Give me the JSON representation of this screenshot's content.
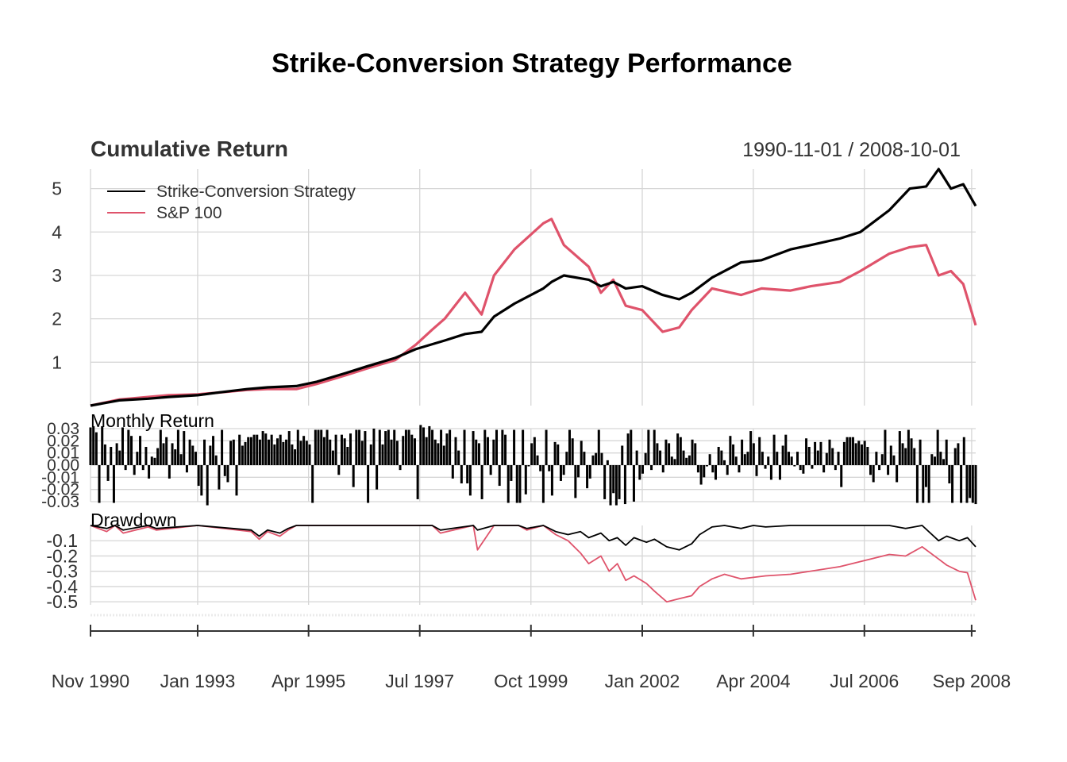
{
  "title": "Strike-Conversion Strategy Performance",
  "colors": {
    "strategy": "#000000",
    "benchmark": "#DF536B",
    "grid": "#D6D6D6",
    "text": "#333333"
  },
  "chart_data": [
    {
      "type": "line",
      "title": "Cumulative Return",
      "date_range_label": "1990-11-01 / 2008-10-01",
      "ylim": [
        0,
        5.45
      ],
      "yticks": [
        "1",
        "2",
        "3",
        "4",
        "5"
      ],
      "legend": {
        "position": "top-left",
        "entries": [
          "Strike-Conversion Strategy",
          "S&P 100"
        ]
      },
      "grid": true,
      "series": [
        {
          "name": "Strike-Conversion Strategy",
          "x": [
            "1990-11-01",
            "1991-06-01",
            "1992-01-01",
            "1992-06-01",
            "1993-01-01",
            "1993-06-01",
            "1994-01-01",
            "1994-06-01",
            "1995-01-01",
            "1995-06-01",
            "1996-01-01",
            "1996-06-01",
            "1997-01-01",
            "1997-06-01",
            "1998-01-01",
            "1998-06-01",
            "1998-10-01",
            "1999-01-01",
            "1999-06-01",
            "2000-01-01",
            "2000-03-01",
            "2000-06-01",
            "2000-12-01",
            "2001-03-01",
            "2001-06-01",
            "2001-09-01",
            "2002-01-01",
            "2002-06-01",
            "2002-10-01",
            "2003-01-01",
            "2003-06-01",
            "2004-01-01",
            "2004-06-01",
            "2005-01-01",
            "2005-06-01",
            "2006-01-01",
            "2006-06-01",
            "2007-01-01",
            "2007-06-01",
            "2007-10-01",
            "2008-01-01",
            "2008-04-01",
            "2008-07-01",
            "2008-10-01"
          ],
          "y": [
            0.0,
            0.12,
            0.16,
            0.2,
            0.24,
            0.3,
            0.38,
            0.42,
            0.45,
            0.55,
            0.75,
            0.9,
            1.1,
            1.3,
            1.5,
            1.65,
            1.7,
            2.05,
            2.35,
            2.7,
            2.85,
            3.0,
            2.9,
            2.75,
            2.85,
            2.7,
            2.75,
            2.55,
            2.45,
            2.6,
            2.95,
            3.3,
            3.35,
            3.6,
            3.7,
            3.85,
            4.0,
            4.5,
            5.0,
            5.05,
            5.45,
            5.0,
            5.1,
            4.6
          ]
        },
        {
          "name": "S&P 100",
          "x": [
            "1990-11-01",
            "1991-06-01",
            "1992-01-01",
            "1992-06-01",
            "1993-01-01",
            "1993-06-01",
            "1994-01-01",
            "1994-06-01",
            "1995-01-01",
            "1995-06-01",
            "1996-01-01",
            "1996-06-01",
            "1997-01-01",
            "1997-06-01",
            "1997-10-01",
            "1998-01-01",
            "1998-06-01",
            "1998-10-01",
            "1999-01-01",
            "1999-06-01",
            "2000-01-01",
            "2000-03-01",
            "2000-06-01",
            "2000-12-01",
            "2001-03-01",
            "2001-06-01",
            "2001-09-01",
            "2002-01-01",
            "2002-06-01",
            "2002-10-01",
            "2003-01-01",
            "2003-06-01",
            "2004-01-01",
            "2004-06-01",
            "2005-01-01",
            "2005-06-01",
            "2006-01-01",
            "2006-06-01",
            "2007-01-01",
            "2007-06-01",
            "2007-10-01",
            "2008-01-01",
            "2008-04-01",
            "2008-07-01",
            "2008-10-01"
          ],
          "y": [
            0.0,
            0.14,
            0.2,
            0.24,
            0.26,
            0.3,
            0.36,
            0.38,
            0.38,
            0.5,
            0.7,
            0.85,
            1.05,
            1.4,
            1.75,
            2.0,
            2.6,
            2.1,
            3.0,
            3.6,
            4.2,
            4.3,
            3.7,
            3.2,
            2.6,
            2.9,
            2.3,
            2.2,
            1.7,
            1.8,
            2.2,
            2.7,
            2.55,
            2.7,
            2.65,
            2.75,
            2.85,
            3.1,
            3.5,
            3.65,
            3.7,
            3.0,
            3.1,
            2.8,
            1.85
          ]
        }
      ]
    },
    {
      "type": "bar",
      "title": "Monthly Return",
      "ylim": [
        -0.03,
        0.03
      ],
      "yticks": [
        "0.03",
        "0.02",
        "0.01",
        "0.00",
        "-0.01",
        "-0.02",
        "-0.03"
      ],
      "series": [
        {
          "name": "Strike-Conversion Strategy",
          "values": [
            0.031,
            0.032,
            0.027,
            -0.031,
            0.032,
            0.017,
            -0.013,
            0.015,
            -0.031,
            0.018,
            0.012,
            0.031,
            -0.004,
            0.029,
            0.024,
            -0.008,
            0.011,
            0.024,
            -0.004,
            0.015,
            -0.011,
            0.007,
            0.006,
            0.014,
            0.029,
            0.018,
            0.023,
            -0.011,
            0.018,
            0.013,
            0.029,
            0.009,
            0.028,
            -0.006,
            0.021,
            0.016,
            0.011,
            -0.017,
            -0.025,
            0.021,
            -0.033,
            0.016,
            0.024,
            0.008,
            -0.02,
            0.029,
            -0.009,
            -0.014,
            0.02,
            0.021,
            -0.025,
            0.025,
            0.016,
            0.019,
            0.023,
            0.023,
            0.025,
            0.025,
            0.021,
            0.028,
            0.026,
            0.021,
            0.025,
            0.017,
            0.022,
            0.025,
            0.019,
            0.021,
            0.028,
            0.017,
            0.013,
            0.029,
            0.02,
            0.024,
            0.02,
            0.017,
            -0.031,
            0.029,
            0.029,
            0.029,
            0.023,
            0.029,
            0.021,
            0.012,
            0.025,
            -0.008,
            0.025,
            0.022,
            0.015,
            0.026,
            -0.018,
            0.029,
            0.029,
            0.02,
            0.028,
            -0.031,
            0.017,
            0.03,
            -0.02,
            0.029,
            0.017,
            0.028,
            0.029,
            0.021,
            0.029,
            0.02,
            -0.004,
            0.024,
            0.029,
            0.029,
            0.025,
            0.022,
            -0.028,
            0.033,
            0.031,
            0.023,
            0.032,
            0.029,
            0.021,
            0.018,
            0.029,
            0.016,
            0.026,
            0.029,
            -0.011,
            0.023,
            0.012,
            -0.015,
            0.029,
            -0.015,
            -0.025,
            0.028,
            0.021,
            0.018,
            -0.028,
            0.029,
            0.023,
            -0.008,
            0.021,
            0.029,
            -0.017,
            0.029,
            0.025,
            -0.031,
            -0.013,
            0.029,
            -0.031,
            -0.031,
            0.029,
            -0.024,
            -0.001,
            0.018,
            0.023,
            0.008,
            -0.005,
            -0.031,
            0.029,
            -0.005,
            -0.025,
            0.019,
            0.017,
            -0.013,
            -0.008,
            0.011,
            0.029,
            0.022,
            -0.027,
            -0.01,
            0.02,
            0.011,
            -0.019,
            -0.011,
            0.008,
            0.01,
            0.029,
            0.01,
            -0.028,
            0.004,
            -0.033,
            -0.023,
            -0.033,
            -0.028,
            0.016,
            -0.032,
            0.026,
            0.029,
            -0.03,
            0.012,
            -0.012,
            -0.007,
            0.01,
            0.029,
            -0.004,
            0.029,
            0.018,
            0.012,
            -0.006,
            0.021,
            0.018,
            0.007,
            0.005,
            0.026,
            0.023,
            0.012,
            0.006,
            0.008,
            0.021,
            0.018,
            -0.006,
            -0.016,
            -0.01,
            -0.001,
            0.009,
            -0.006,
            -0.012,
            0.015,
            0.012,
            0.004,
            -0.008,
            0.024,
            0.017,
            0.007,
            -0.006,
            0.021,
            0.009,
            0.011,
            0.028,
            0.018,
            -0.009,
            0.023,
            0.011,
            -0.003,
            0.007,
            -0.012,
            0.025,
            0.011,
            -0.012,
            0.016,
            0.025,
            0.011,
            0.007,
            -0.001,
            0.011,
            -0.004,
            -0.007,
            0.022,
            0.015,
            -0.003,
            0.019,
            0.012,
            0.019,
            -0.006,
            0.01,
            0.021,
            0.014,
            -0.004,
            0.011,
            -0.018,
            0.019,
            0.023,
            0.023,
            0.023,
            0.018,
            0.02,
            0.017,
            0.02,
            0.015,
            -0.008,
            -0.014,
            0.011,
            -0.004,
            0.009,
            0.029,
            -0.008,
            0.016,
            0.008,
            -0.014,
            0.028,
            0.018,
            0.014,
            0.029,
            0.022,
            0.014,
            -0.031,
            0.021,
            -0.031,
            -0.018,
            -0.031,
            0.009,
            0.007,
            0.029,
            0.011,
            0.005,
            0.021,
            -0.015,
            -0.031,
            0.014,
            0.018,
            -0.031,
            0.023,
            -0.031,
            -0.027,
            -0.031,
            -0.032
          ]
        }
      ]
    },
    {
      "type": "line",
      "title": "Drawdown",
      "ylim": [
        -0.52,
        0.0
      ],
      "yticks": [
        "-0.1",
        "-0.2",
        "-0.3",
        "-0.4",
        "-0.5"
      ],
      "series": [
        {
          "name": "Strike-Conversion Strategy",
          "x": [
            "1990-11-01",
            "1991-03-01",
            "1991-05-01",
            "1991-07-01",
            "1992-01-01",
            "1992-03-01",
            "1993-01-01",
            "1994-02-01",
            "1994-04-01",
            "1994-06-01",
            "1994-09-01",
            "1994-11-01",
            "1995-01-01",
            "1997-10-01",
            "1997-12-01",
            "1998-08-01",
            "1998-09-01",
            "1999-01-01",
            "1999-07-01",
            "1999-09-01",
            "2000-01-01",
            "2000-04-01",
            "2000-07-01",
            "2000-10-01",
            "2000-12-01",
            "2001-03-01",
            "2001-05-01",
            "2001-07-01",
            "2001-09-01",
            "2001-11-01",
            "2002-02-01",
            "2002-04-01",
            "2002-07-01",
            "2002-10-01",
            "2003-01-01",
            "2003-03-01",
            "2003-06-01",
            "2003-09-01",
            "2004-01-01",
            "2004-04-01",
            "2004-07-01",
            "2005-01-01",
            "2006-01-01",
            "2007-01-01",
            "2007-05-01",
            "2007-09-01",
            "2008-01-01",
            "2008-03-01",
            "2008-06-01",
            "2008-08-01",
            "2008-10-01"
          ],
          "y": [
            0.0,
            -0.02,
            0.0,
            -0.03,
            0.0,
            -0.02,
            0.0,
            -0.03,
            -0.07,
            -0.03,
            -0.05,
            -0.02,
            0.0,
            0.0,
            -0.03,
            0.0,
            -0.03,
            0.0,
            0.0,
            -0.02,
            0.0,
            -0.04,
            -0.06,
            -0.04,
            -0.08,
            -0.05,
            -0.1,
            -0.08,
            -0.13,
            -0.08,
            -0.11,
            -0.09,
            -0.14,
            -0.16,
            -0.12,
            -0.06,
            -0.01,
            0.0,
            -0.02,
            0.0,
            -0.01,
            0.0,
            0.0,
            0.0,
            -0.02,
            0.0,
            -0.1,
            -0.07,
            -0.1,
            -0.08,
            -0.14
          ]
        },
        {
          "name": "S&P 100",
          "x": [
            "1990-11-01",
            "1991-03-01",
            "1991-05-01",
            "1991-07-01",
            "1992-01-01",
            "1992-03-01",
            "1993-01-01",
            "1994-02-01",
            "1994-04-01",
            "1994-06-01",
            "1994-09-01",
            "1994-11-01",
            "1995-01-01",
            "1997-10-01",
            "1997-12-01",
            "1998-08-01",
            "1998-09-01",
            "1999-01-01",
            "1999-07-01",
            "1999-09-01",
            "2000-01-01",
            "2000-04-01",
            "2000-07-01",
            "2000-10-01",
            "2000-12-01",
            "2001-03-01",
            "2001-05-01",
            "2001-07-01",
            "2001-09-01",
            "2001-11-01",
            "2002-02-01",
            "2002-04-01",
            "2002-07-01",
            "2002-10-01",
            "2003-01-01",
            "2003-03-01",
            "2003-06-01",
            "2003-09-01",
            "2004-01-01",
            "2004-04-01",
            "2004-07-01",
            "2005-01-01",
            "2006-01-01",
            "2007-01-01",
            "2007-05-01",
            "2007-09-01",
            "2008-01-01",
            "2008-03-01",
            "2008-06-01",
            "2008-08-01",
            "2008-10-01"
          ],
          "y": [
            0.0,
            -0.04,
            0.0,
            -0.05,
            -0.01,
            -0.03,
            0.0,
            -0.04,
            -0.09,
            -0.04,
            -0.07,
            -0.03,
            0.0,
            0.0,
            -0.05,
            0.0,
            -0.16,
            0.0,
            0.0,
            -0.03,
            0.0,
            -0.06,
            -0.1,
            -0.18,
            -0.25,
            -0.2,
            -0.3,
            -0.25,
            -0.36,
            -0.33,
            -0.38,
            -0.43,
            -0.5,
            -0.48,
            -0.46,
            -0.4,
            -0.35,
            -0.32,
            -0.35,
            -0.34,
            -0.33,
            -0.32,
            -0.27,
            -0.19,
            -0.2,
            -0.14,
            -0.22,
            -0.26,
            -0.3,
            -0.31,
            -0.49
          ]
        }
      ]
    }
  ],
  "x_axis": {
    "start": "1990-11-01",
    "end": "2008-10-01",
    "tick_labels": [
      "Nov 1990",
      "Jan 1993",
      "Apr 1995",
      "Jul 1997",
      "Oct 1999",
      "Jan 2002",
      "Apr 2004",
      "Jul 2006",
      "Sep 2008"
    ],
    "tick_dates": [
      "1990-11-01",
      "1993-01-01",
      "1995-04-01",
      "1997-07-01",
      "1999-10-01",
      "2002-01-01",
      "2004-04-01",
      "2006-07-01",
      "2008-09-01"
    ]
  }
}
